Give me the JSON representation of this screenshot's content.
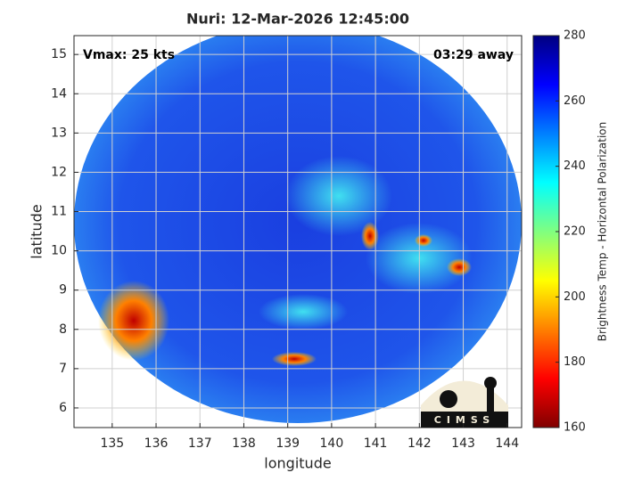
{
  "chart_data": {
    "type": "map",
    "title": "Nuri: 12-Mar-2026 12:45:00",
    "annotation_left": "Vmax: 25 kts",
    "annotation_right": "03:29 away",
    "x_label": "longitude",
    "y_label": "latitude",
    "xlim": [
      134.13,
      144.33
    ],
    "ylim": [
      5.5,
      15.48
    ],
    "xticks": [
      135,
      136,
      137,
      138,
      139,
      140,
      141,
      142,
      143,
      144
    ],
    "yticks": [
      6,
      7,
      8,
      9,
      10,
      11,
      12,
      13,
      14,
      15
    ],
    "grid": true,
    "colorbar_label": "Brightness Temp - Horizontal Polarization",
    "clim": [
      160,
      280
    ],
    "colorbar_ticks": [
      160,
      180,
      200,
      220,
      240,
      260,
      280
    ],
    "logo": "CIMSS"
  }
}
